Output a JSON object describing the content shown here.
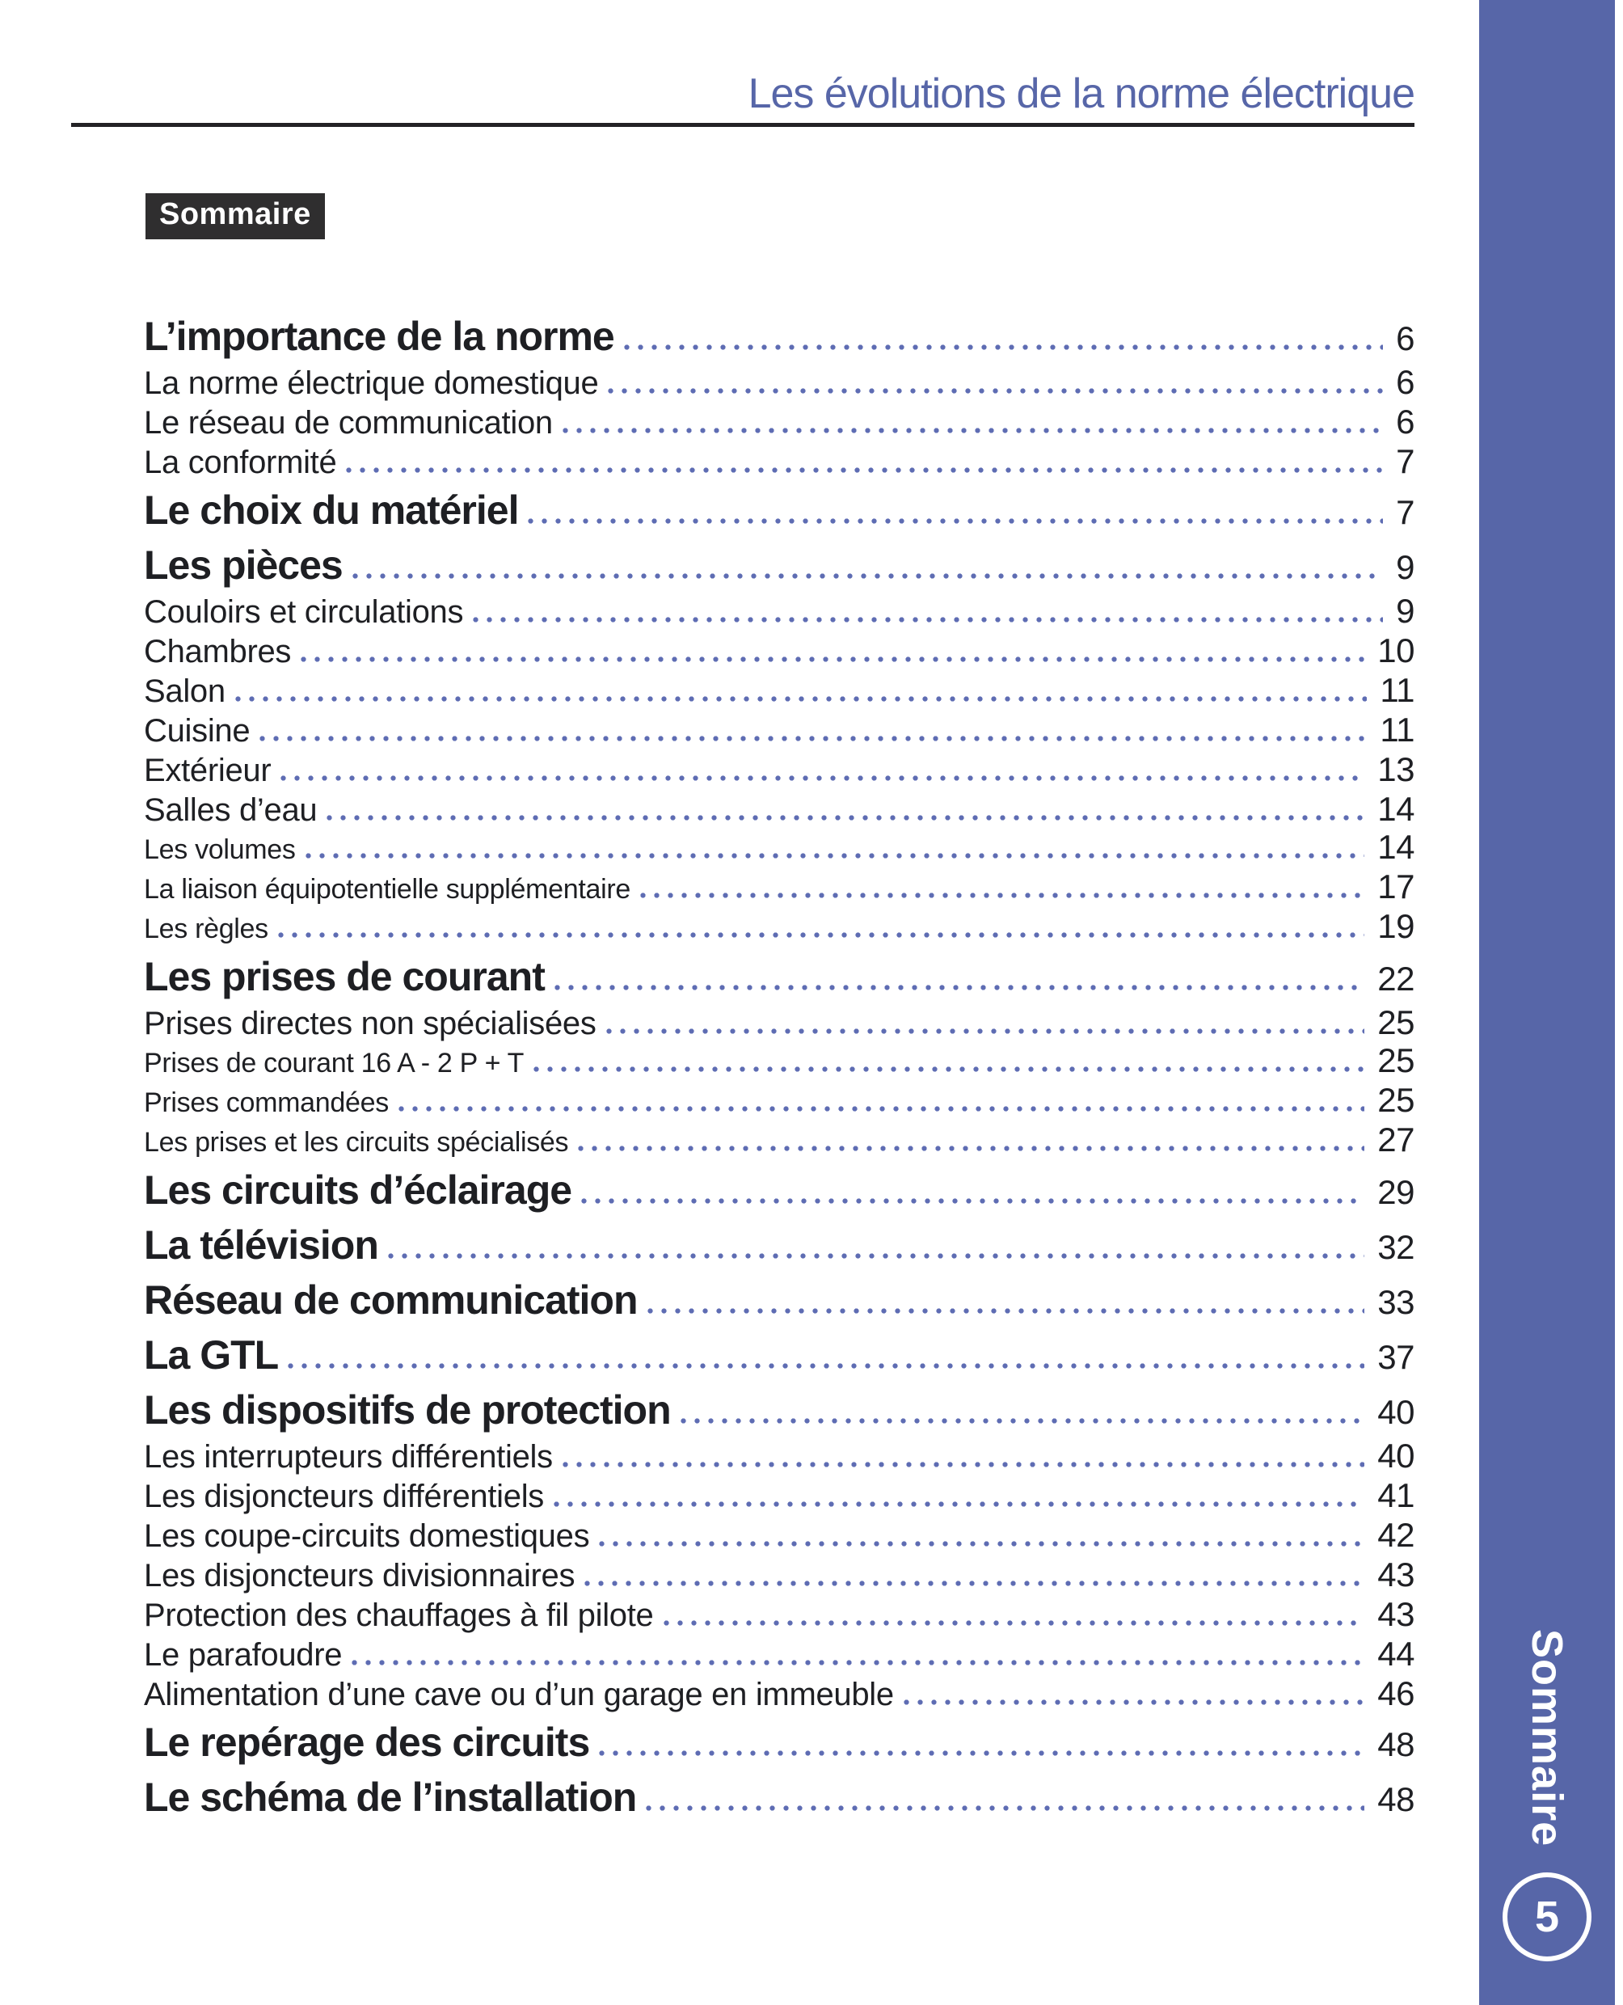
{
  "document": {
    "header_title": "Les évolutions de la norme électrique",
    "section_heading": "Sommaire",
    "sidebar": {
      "vertical_label": "Sommaire",
      "page_badge": "5"
    },
    "colors": {
      "accent_blue": "#5766a8",
      "leader_dot_blue": "#5e6cb3",
      "ink": "#1e1f23",
      "heading_box_bg": "#2f2e2f"
    },
    "toc": [
      {
        "label": "L’importance de la norme",
        "page": "6",
        "level": 1
      },
      {
        "label": "La norme électrique domestique",
        "page": "6",
        "level": 2
      },
      {
        "label": "Le réseau de communication",
        "page": "6",
        "level": 2
      },
      {
        "label": "La conformité",
        "page": "7",
        "level": 2
      },
      {
        "label": "Le choix du matériel",
        "page": "7",
        "level": 1
      },
      {
        "label": "Les pièces",
        "page": "9",
        "level": 1
      },
      {
        "label": "Couloirs et circulations",
        "page": "9",
        "level": 2
      },
      {
        "label": "Chambres",
        "page": "10",
        "level": 2
      },
      {
        "label": "Salon",
        "page": "11",
        "level": 2
      },
      {
        "label": "Cuisine",
        "page": "11",
        "level": 2
      },
      {
        "label": "Extérieur",
        "page": "13",
        "level": 2
      },
      {
        "label": "Salles d’eau",
        "page": "14",
        "level": 2
      },
      {
        "label": "Les volumes",
        "page": "14",
        "level": 3
      },
      {
        "label": "La liaison équipotentielle supplémentaire",
        "page": "17",
        "level": 3
      },
      {
        "label": "Les règles",
        "page": "19",
        "level": 3
      },
      {
        "label": "Les prises de courant",
        "page": "22",
        "level": 1
      },
      {
        "label": "Prises directes non spécialisées",
        "page": "25",
        "level": 2
      },
      {
        "label": "Prises de courant 16 A - 2 P + T",
        "page": "25",
        "level": 3
      },
      {
        "label": "Prises commandées",
        "page": "25",
        "level": 3
      },
      {
        "label": "Les prises et les circuits spécialisés",
        "page": "27",
        "level": 3
      },
      {
        "label": "Les circuits d’éclairage",
        "page": "29",
        "level": 1
      },
      {
        "label": "La télévision",
        "page": "32",
        "level": 1
      },
      {
        "label": "Réseau de communication",
        "page": "33",
        "level": 1
      },
      {
        "label": "La GTL",
        "page": "37",
        "level": 1
      },
      {
        "label": "Les dispositifs de protection",
        "page": "40",
        "level": 1
      },
      {
        "label": "Les interrupteurs différentiels",
        "page": "40",
        "level": 2
      },
      {
        "label": "Les disjoncteurs différentiels",
        "page": "41",
        "level": 2
      },
      {
        "label": "Les coupe-circuits domestiques",
        "page": "42",
        "level": 2
      },
      {
        "label": "Les disjoncteurs divisionnaires",
        "page": "43",
        "level": 2
      },
      {
        "label": "Protection des chauffages à fil pilote",
        "page": "43",
        "level": 2
      },
      {
        "label": "Le parafoudre",
        "page": "44",
        "level": 2
      },
      {
        "label": "Alimentation d’une cave ou d’un garage en immeuble",
        "page": "46",
        "level": 2
      },
      {
        "label": "Le repérage des circuits",
        "page": "48",
        "level": 1
      },
      {
        "label": "Le schéma de l’installation",
        "page": "48",
        "level": 1
      }
    ]
  }
}
